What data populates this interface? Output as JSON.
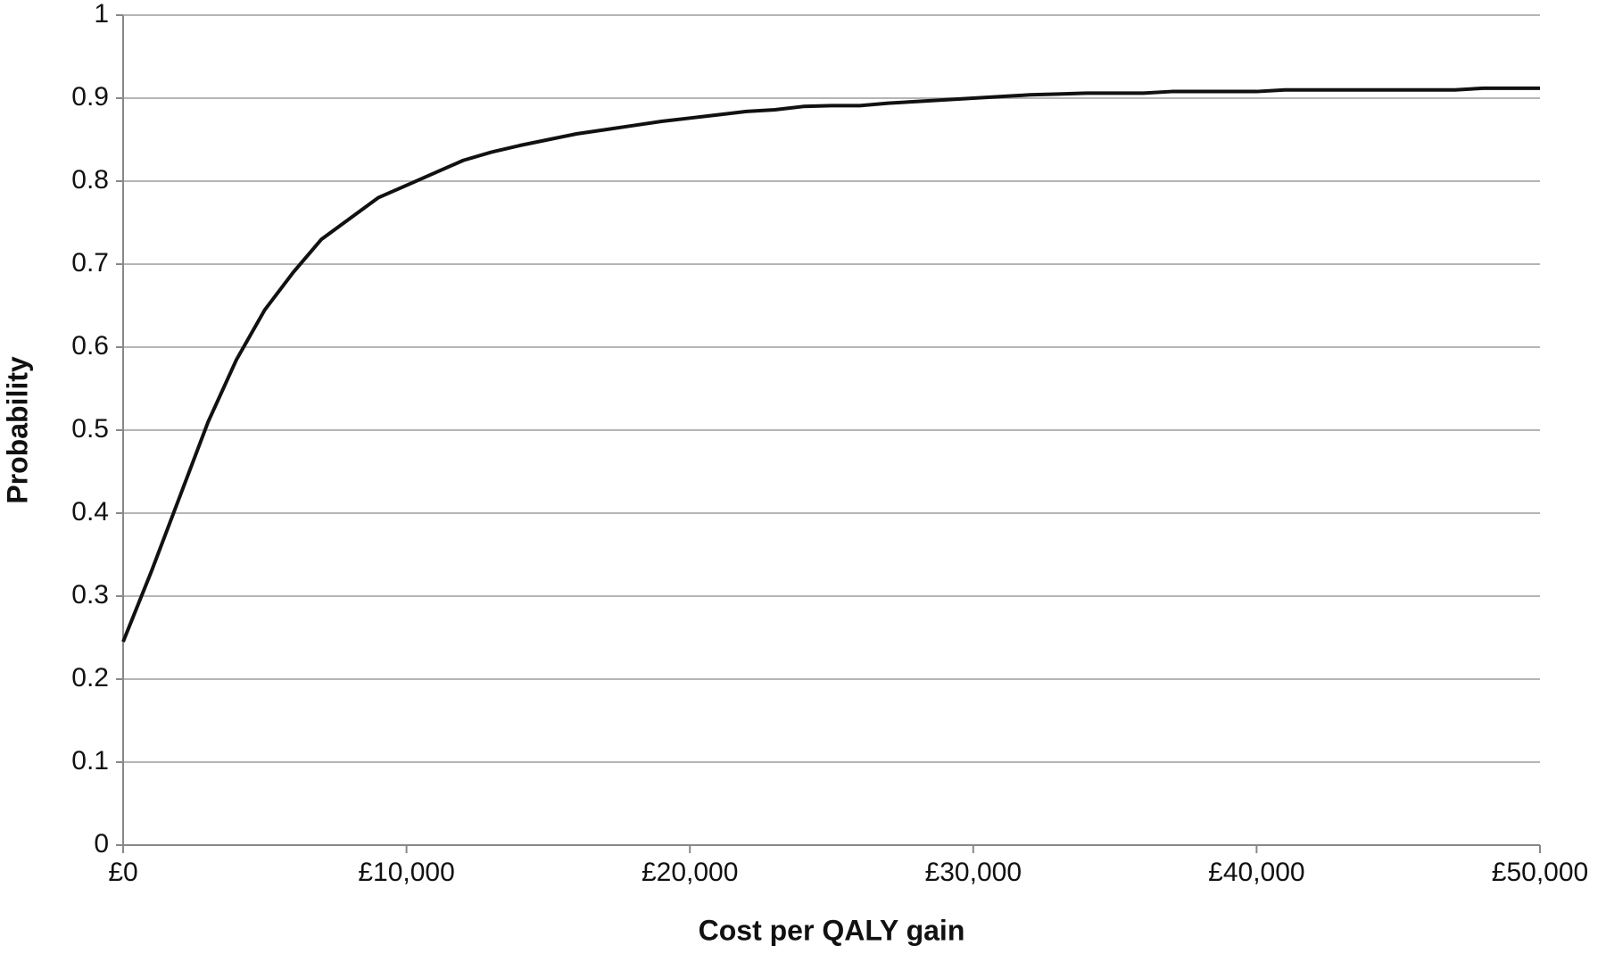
{
  "chart_data": {
    "type": "line",
    "x_label": "Cost per QALY gain",
    "y_label": "Probability",
    "x": [
      0,
      1000,
      2000,
      3000,
      4000,
      5000,
      6000,
      7000,
      8000,
      9000,
      10000,
      11000,
      12000,
      13000,
      14000,
      15000,
      16000,
      17000,
      18000,
      19000,
      20000,
      21000,
      22000,
      23000,
      24000,
      25000,
      26000,
      27000,
      28000,
      29000,
      30000,
      31000,
      32000,
      33000,
      34000,
      35000,
      36000,
      37000,
      38000,
      39000,
      40000,
      41000,
      42000,
      43000,
      44000,
      45000,
      46000,
      47000,
      48000,
      49000,
      50000
    ],
    "series": [
      {
        "color": "#111111",
        "values": [
          0.245,
          0.33,
          0.42,
          0.51,
          0.585,
          0.645,
          0.69,
          0.73,
          0.755,
          0.78,
          0.795,
          0.81,
          0.825,
          0.835,
          0.843,
          0.85,
          0.857,
          0.862,
          0.867,
          0.872,
          0.876,
          0.88,
          0.884,
          0.886,
          0.89,
          0.891,
          0.891,
          0.894,
          0.896,
          0.898,
          0.9,
          0.902,
          0.904,
          0.905,
          0.906,
          0.906,
          0.906,
          0.908,
          0.908,
          0.908,
          0.908,
          0.91,
          0.91,
          0.91,
          0.91,
          0.91,
          0.91,
          0.91,
          0.912,
          0.912,
          0.912
        ]
      }
    ],
    "xlim": [
      0,
      50000
    ],
    "xticks": [
      {
        "value": 0,
        "label": "£0"
      },
      {
        "value": 10000,
        "label": "£10,000"
      },
      {
        "value": 20000,
        "label": "£20,000"
      },
      {
        "value": 30000,
        "label": "£30,000"
      },
      {
        "value": 40000,
        "label": "£40,000"
      },
      {
        "value": 50000,
        "label": "£50,000"
      }
    ],
    "ylim": [
      0,
      1
    ],
    "yticks": [
      0,
      0.1,
      0.2,
      0.3,
      0.4,
      0.5,
      0.6,
      0.7,
      0.8,
      0.9,
      1
    ],
    "grid": true
  }
}
